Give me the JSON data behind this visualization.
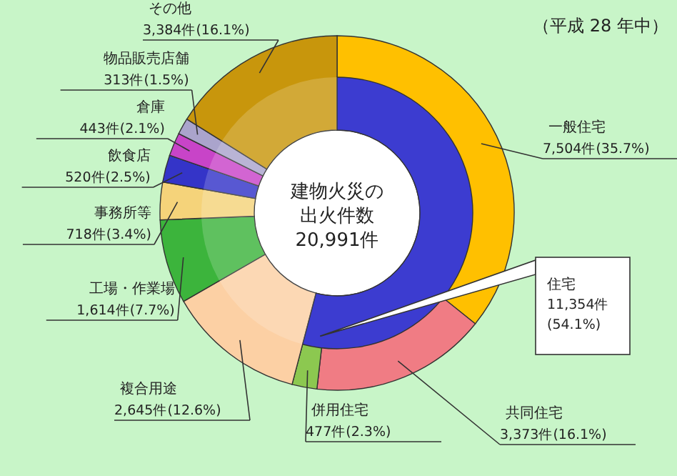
{
  "chart_data": [
    {
      "type": "donut",
      "title": "（平成 28 年中）",
      "annotations": [
        "建物火災の",
        "出火件数",
        "20,991件"
      ],
      "categories": [
        "一般住宅",
        "共同住宅",
        "併用住宅",
        "複合用途",
        "工場・作業場",
        "事務所等",
        "飲食店",
        "倉庫",
        "物品販売店舗",
        "その他"
      ],
      "values": [
        7504,
        3373,
        477,
        2645,
        1614,
        718,
        520,
        443,
        313,
        3384
      ],
      "colors": [
        "#ffc000",
        "#f07c84",
        "#8cc850",
        "#fcd0a4",
        "#3cb43c",
        "#f5d37a",
        "#3434c8",
        "#c844c8",
        "#aaa4cc",
        "#c8960c"
      ],
      "value_labels": [
        "7,504件(35.7%)",
        "3,373件(16.1%)",
        "477件(2.3%)",
        "2,645件(12.6%)",
        "1,614件(7.7%)",
        "718件(3.4%)",
        "520件(2.5%)",
        "443件(2.1%)",
        "313件(1.5%)",
        "3,384件(16.1%)"
      ]
    },
    {
      "type": "donut",
      "categories": [
        "住宅",
        null
      ],
      "values": [
        11354,
        9637
      ],
      "colors": [
        "#3c3cd0",
        null
      ],
      "value_labels": [
        "11,354件(54.1%)",
        null
      ]
    }
  ]
}
